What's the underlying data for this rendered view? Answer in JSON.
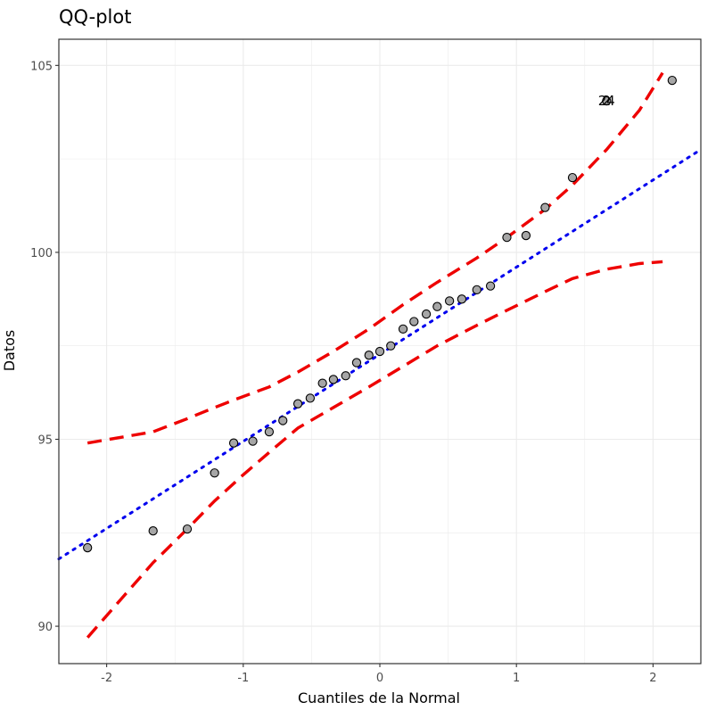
{
  "chart_data": {
    "type": "scatter",
    "title": "QQ-plot",
    "xlabel": "Cuantiles de la Normal",
    "ylabel": "Datos",
    "xlim": [
      -2.35,
      2.35
    ],
    "ylim": [
      89.0,
      105.7
    ],
    "x_ticks": [
      -2,
      -1,
      0,
      1,
      2
    ],
    "x_tick_labels": [
      "-2",
      "-1",
      "0",
      "1",
      "2"
    ],
    "y_ticks": [
      90,
      95,
      100,
      105
    ],
    "y_tick_labels": [
      "90",
      "95",
      "100",
      "105"
    ],
    "grid": true,
    "points": [
      {
        "x": -2.14,
        "y": 92.1
      },
      {
        "x": -1.66,
        "y": 92.55
      },
      {
        "x": -1.41,
        "y": 92.6
      },
      {
        "x": -1.21,
        "y": 94.1
      },
      {
        "x": -1.07,
        "y": 94.9
      },
      {
        "x": -0.93,
        "y": 94.95
      },
      {
        "x": -0.81,
        "y": 95.2
      },
      {
        "x": -0.71,
        "y": 95.5
      },
      {
        "x": -0.6,
        "y": 95.95
      },
      {
        "x": -0.51,
        "y": 96.1
      },
      {
        "x": -0.42,
        "y": 96.5
      },
      {
        "x": -0.34,
        "y": 96.6
      },
      {
        "x": -0.25,
        "y": 96.7
      },
      {
        "x": -0.17,
        "y": 97.05
      },
      {
        "x": -0.08,
        "y": 97.25
      },
      {
        "x": 0.0,
        "y": 97.35
      },
      {
        "x": 0.08,
        "y": 97.5
      },
      {
        "x": 0.17,
        "y": 97.95
      },
      {
        "x": 0.25,
        "y": 98.15
      },
      {
        "x": 0.34,
        "y": 98.35
      },
      {
        "x": 0.42,
        "y": 98.55
      },
      {
        "x": 0.51,
        "y": 98.7
      },
      {
        "x": 0.6,
        "y": 98.75
      },
      {
        "x": 0.71,
        "y": 99.0
      },
      {
        "x": 0.81,
        "y": 99.1
      },
      {
        "x": 0.93,
        "y": 100.4
      },
      {
        "x": 1.07,
        "y": 100.45
      },
      {
        "x": 1.21,
        "y": 101.2
      },
      {
        "x": 1.41,
        "y": 102.0
      },
      {
        "x": 1.66,
        "y": 104.05
      },
      {
        "x": 2.14,
        "y": 104.6
      }
    ],
    "point_labels": [
      {
        "x": 1.66,
        "y": 104.05,
        "text": "24"
      },
      {
        "x": 1.66,
        "y": 104.05,
        "text": "2"
      }
    ],
    "reference_line": {
      "name": "qq-line",
      "style": "dotted",
      "color": "#0000ee",
      "x": [
        -2.35,
        2.35
      ],
      "y": [
        91.8,
        102.75
      ]
    },
    "confidence_bands": [
      {
        "name": "upper",
        "style": "dashed",
        "color": "#ee0000",
        "x": [
          -2.14,
          -1.66,
          -1.41,
          -1.21,
          -1.07,
          -0.81,
          -0.6,
          -0.34,
          -0.08,
          0.17,
          0.42,
          0.71,
          0.93,
          1.21,
          1.41,
          1.66,
          1.9,
          2.07
        ],
        "y": [
          94.9,
          95.2,
          95.55,
          95.85,
          96.05,
          96.4,
          96.8,
          97.35,
          97.95,
          98.6,
          99.2,
          99.85,
          100.4,
          101.15,
          101.8,
          102.75,
          103.8,
          104.8
        ]
      },
      {
        "name": "lower",
        "style": "dashed",
        "color": "#ee0000",
        "x": [
          -2.14,
          -1.9,
          -1.66,
          -1.41,
          -1.21,
          -1.0,
          -0.81,
          -0.6,
          -0.34,
          -0.08,
          0.17,
          0.42,
          0.71,
          0.93,
          1.21,
          1.41,
          1.66,
          1.9,
          2.07
        ],
        "y": [
          89.7,
          90.7,
          91.7,
          92.6,
          93.35,
          94.05,
          94.65,
          95.3,
          95.85,
          96.4,
          96.95,
          97.5,
          98.05,
          98.45,
          98.95,
          99.3,
          99.55,
          99.7,
          99.75
        ]
      }
    ],
    "colors": {
      "point_fill": "#a6a6a6",
      "point_stroke": "#000000",
      "grid": "#ebebeb",
      "panel_border": "#333333"
    }
  }
}
